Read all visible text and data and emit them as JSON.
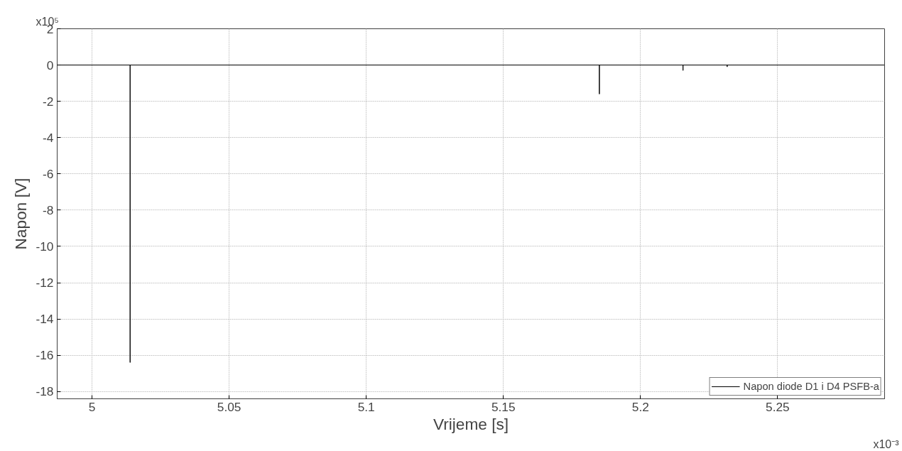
{
  "chart_data": {
    "type": "line",
    "xlabel": "Vrijeme [s]",
    "ylabel": "Napon [V]",
    "x": [
      4.9873,
      5.0139,
      5.0139,
      5.0139,
      5.185,
      5.185,
      5.185,
      5.2155,
      5.2155,
      5.2155,
      5.2316,
      5.2316,
      5.2316,
      5.289
    ],
    "series": [
      {
        "name": "Napon diode D1 i D4 PSFB-a",
        "color": "#000000",
        "values": [
          0,
          0,
          -16.4,
          0,
          0,
          -1.6,
          0,
          0,
          -0.3,
          0,
          0,
          -0.1,
          0,
          0
        ]
      }
    ],
    "xlim": [
      4.9873,
      5.289
    ],
    "xticks": [
      5,
      5.05,
      5.1,
      5.15,
      5.2,
      5.25
    ],
    "ylim": [
      -18.4,
      2
    ],
    "yticks": [
      2,
      0,
      -2,
      -4,
      -6,
      -8,
      -10,
      -12,
      -14,
      -16,
      -18
    ],
    "grid": true,
    "legend": "bottom right",
    "line_style": "solid",
    "marker": "none",
    "annotations": [
      "x10⁵",
      "x10⁻³"
    ]
  }
}
